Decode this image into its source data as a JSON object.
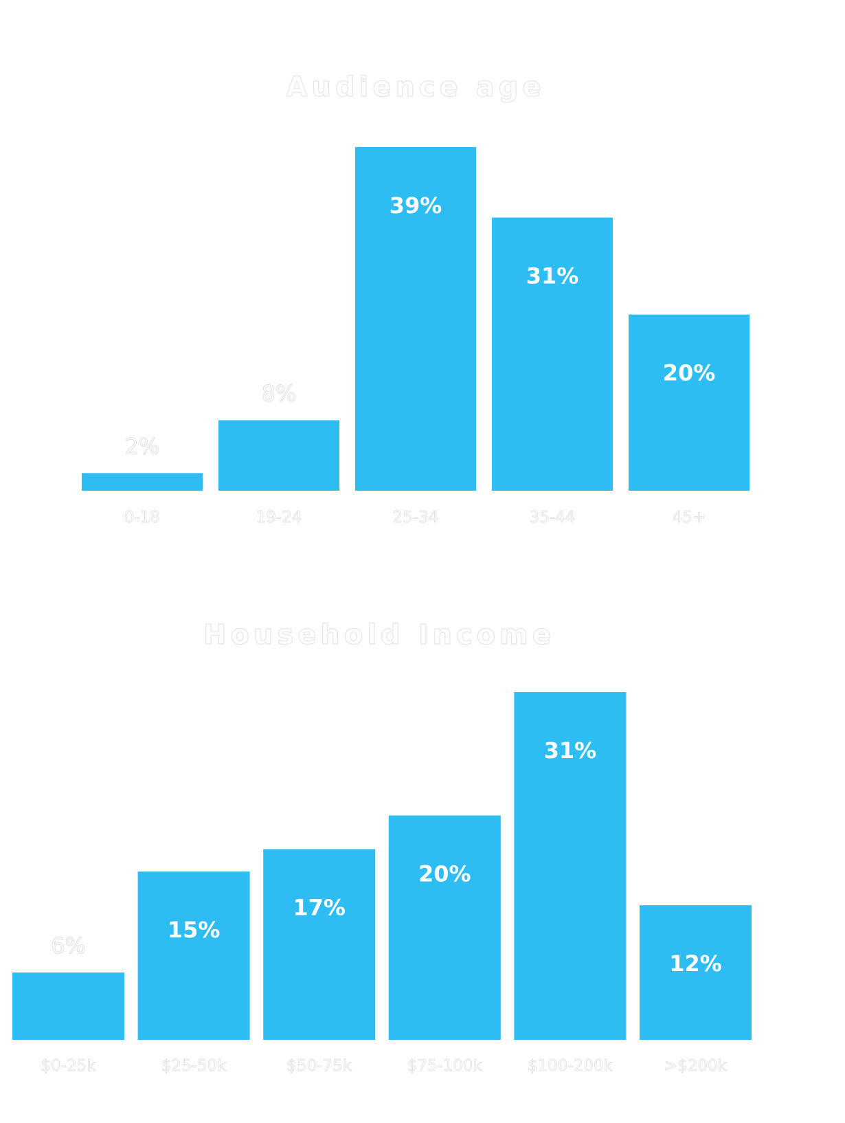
{
  "colors": {
    "bar": "#2ebdf2",
    "background": "#ffffff"
  },
  "chart_data": [
    {
      "type": "bar",
      "title": "Audience age",
      "categories": [
        "0-18",
        "19-24",
        "25-34",
        "35-44",
        "45+"
      ],
      "values": [
        2,
        8,
        39,
        31,
        20
      ],
      "value_labels": [
        "2%",
        "8%",
        "39%",
        "31%",
        "20%"
      ],
      "ylim": [
        0,
        39
      ],
      "grid": false
    },
    {
      "type": "bar",
      "title": "Household Income",
      "categories": [
        "$0-25k",
        "$25-50k",
        "$50-75k",
        "$75-100k",
        "$100-200k",
        ">$200k"
      ],
      "values": [
        6,
        15,
        17,
        20,
        31,
        12
      ],
      "value_labels": [
        "6%",
        "15%",
        "17%",
        "20%",
        "31%",
        "12%"
      ],
      "ylim": [
        0,
        31
      ],
      "grid": false
    }
  ]
}
